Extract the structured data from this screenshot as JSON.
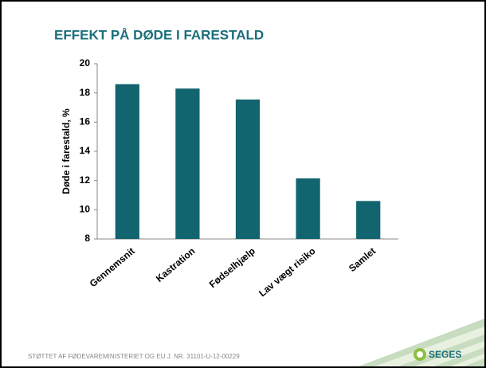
{
  "chart_data": {
    "type": "bar",
    "title": "EFFEKT PÅ DØDE I FARESTALD",
    "y_label": "Døde i farestald, %",
    "categories": [
      "Gennemsnit",
      "Kastration",
      "Fødselhjælp",
      "Lav vægt risiko",
      "Samlet"
    ],
    "values": [
      18.6,
      18.3,
      17.55,
      12.15,
      10.6
    ],
    "color": "#12646f",
    "ylim": [
      8,
      20
    ],
    "yticks": [
      8,
      10,
      12,
      14,
      16,
      18,
      20
    ],
    "grid": false
  },
  "footer": "STØTTET AF FØDEVAREMINISTERIET OG EU  J. NR. 31101-U-12-00229",
  "logo": "SEGES"
}
